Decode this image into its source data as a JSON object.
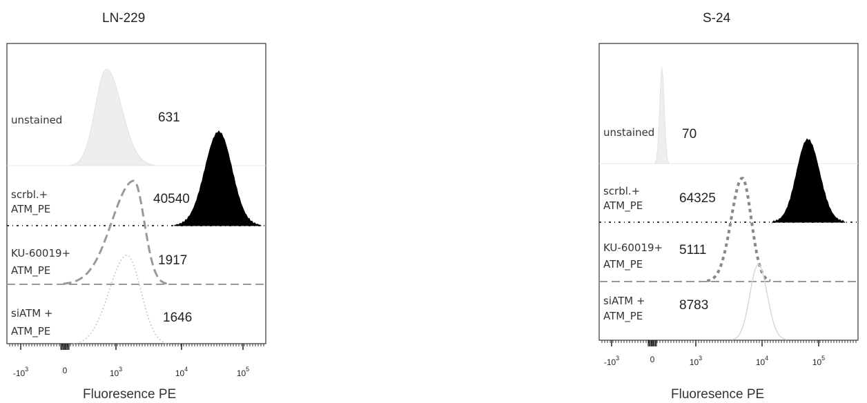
{
  "chart_data": [
    {
      "type": "histogram",
      "title": "LN-229",
      "xlabel": "Fluoresence PE",
      "x_scale": "biexponential",
      "x_ticks": [
        "-10^3",
        "0",
        "10^3",
        "10^4",
        "10^5"
      ],
      "xlim": [
        -1500,
        300000
      ],
      "grid": false,
      "rows": [
        {
          "label": [
            "unstained"
          ],
          "value": "631",
          "peak": 600,
          "style": "light-gray-fill"
        },
        {
          "label": [
            "scrbl.+",
            "ATM_PE"
          ],
          "value": "40540",
          "peak": 40540,
          "style": "black-fill"
        },
        {
          "label": [
            "KU-60019+",
            "ATM_PE"
          ],
          "value": "1917",
          "peak": 1917,
          "style": "dashed-gray-line"
        },
        {
          "label": [
            "siATM +",
            "ATM_PE"
          ],
          "value": "1646",
          "peak": 1500,
          "style": "dotted-light-line"
        }
      ]
    },
    {
      "type": "histogram",
      "title": "S-24",
      "xlabel": "Fluoresence PE",
      "x_scale": "biexponential",
      "x_ticks": [
        "-10^3",
        "0",
        "10^3",
        "10^4",
        "10^5"
      ],
      "xlim": [
        -1500,
        300000
      ],
      "grid": false,
      "rows": [
        {
          "label": [
            "unstained"
          ],
          "value": "70",
          "peak": 70,
          "style": "light-gray-fill"
        },
        {
          "label": [
            "scrbl.+",
            "ATM_PE"
          ],
          "value": "64325",
          "peak": 64325,
          "style": "black-fill"
        },
        {
          "label": [
            "KU-60019+",
            "ATM_PE"
          ],
          "value": "5111",
          "peak": 5111,
          "style": "dashed-gray-line"
        },
        {
          "label": [
            "siATM +",
            "ATM_PE"
          ],
          "value": "8783",
          "peak": 8783,
          "style": "light-gray-line"
        }
      ]
    }
  ]
}
